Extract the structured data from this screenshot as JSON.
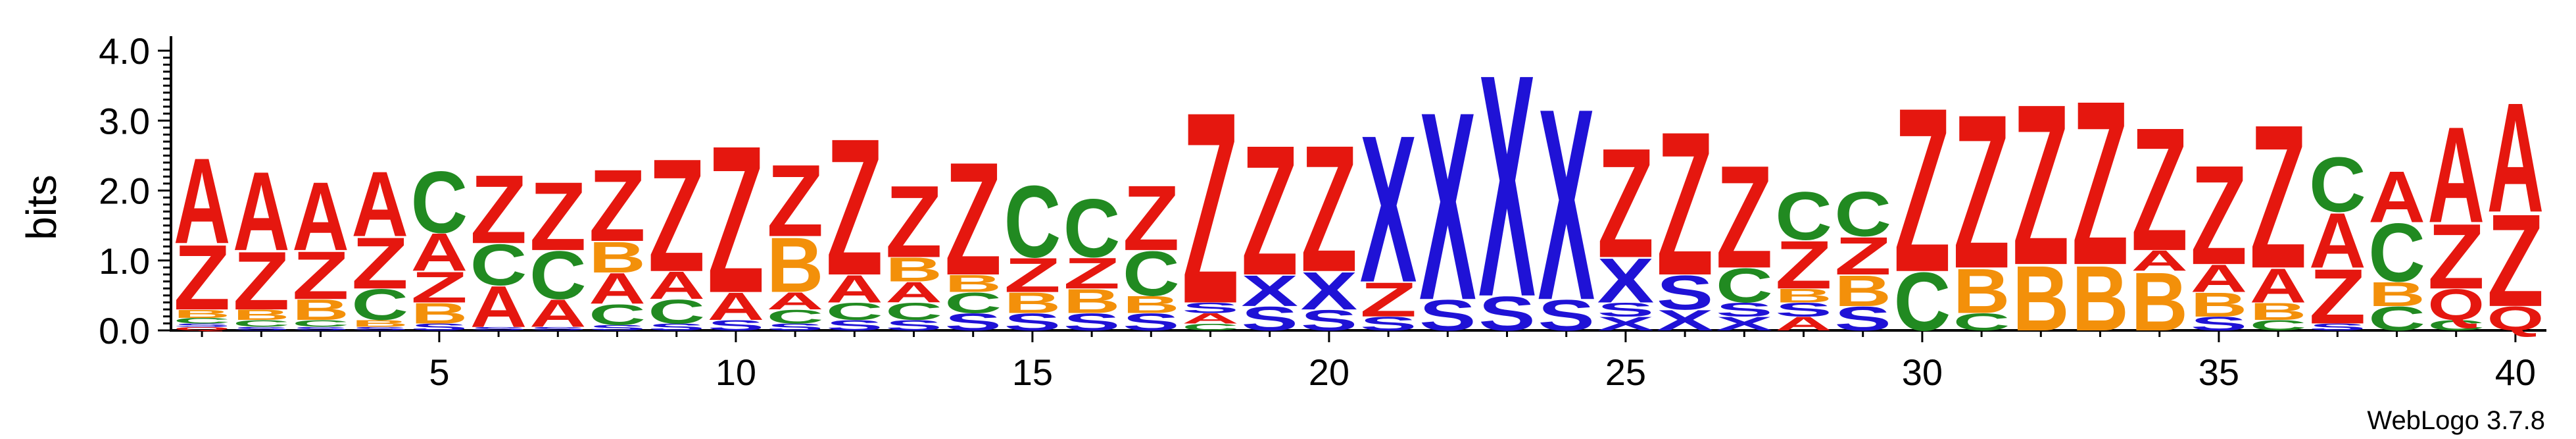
{
  "chart_data": {
    "type": "sequence_logo",
    "ylabel": "bits",
    "ylim": [
      0,
      4.0
    ],
    "yticks": [
      "0.0",
      "1.0",
      "2.0",
      "3.0",
      "4.0"
    ],
    "xlim": [
      0.5,
      40.5
    ],
    "xticks": [
      5,
      10,
      15,
      20,
      25,
      30,
      35,
      40
    ],
    "credit": "WebLogo 3.7.8",
    "colors": {
      "A": "#e5170f",
      "Z": "#e5170f",
      "X": "#1f12d6",
      "S": "#1f12d6",
      "C": "#218a21",
      "B": "#f3900a",
      "Q": "#e5170f"
    },
    "positions": [
      [
        [
          "Q",
          0.05
        ],
        [
          "S",
          0.05
        ],
        [
          "C",
          0.08
        ],
        [
          "B",
          0.12
        ],
        [
          "Z",
          0.95
        ],
        [
          "A",
          1.25
        ]
      ],
      [
        [
          "S",
          0.05
        ],
        [
          "C",
          0.1
        ],
        [
          "B",
          0.15
        ],
        [
          "Z",
          0.85
        ],
        [
          "A",
          1.15
        ]
      ],
      [
        [
          "S",
          0.05
        ],
        [
          "C",
          0.1
        ],
        [
          "B",
          0.3
        ],
        [
          "Z",
          0.7
        ],
        [
          "A",
          1.0
        ]
      ],
      [
        [
          "S",
          0.05
        ],
        [
          "B",
          0.1
        ],
        [
          "C",
          0.45
        ],
        [
          "Z",
          0.75
        ],
        [
          "A",
          0.95
        ]
      ],
      [
        [
          "S",
          0.1
        ],
        [
          "B",
          0.3
        ],
        [
          "Z",
          0.45
        ],
        [
          "A",
          0.55
        ],
        [
          "C",
          0.9
        ]
      ],
      [
        [
          "S",
          0.05
        ],
        [
          "A",
          0.6
        ],
        [
          "C",
          0.6
        ],
        [
          "Z",
          1.0
        ]
      ],
      [
        [
          "S",
          0.05
        ],
        [
          "A",
          0.4
        ],
        [
          "C",
          0.7
        ],
        [
          "Z",
          1.0
        ]
      ],
      [
        [
          "S",
          0.08
        ],
        [
          "C",
          0.3
        ],
        [
          "A",
          0.45
        ],
        [
          "B",
          0.45
        ],
        [
          "Z",
          1.05
        ]
      ],
      [
        [
          "S",
          0.1
        ],
        [
          "C",
          0.35
        ],
        [
          "A",
          0.4
        ],
        [
          "Z",
          1.65
        ]
      ],
      [
        [
          "S",
          0.15
        ],
        [
          "A",
          0.4
        ],
        [
          "Z",
          2.15
        ]
      ],
      [
        [
          "S",
          0.1
        ],
        [
          "C",
          0.2
        ],
        [
          "A",
          0.25
        ],
        [
          "B",
          0.8
        ],
        [
          "Z",
          1.05
        ]
      ],
      [
        [
          "S",
          0.15
        ],
        [
          "C",
          0.25
        ],
        [
          "A",
          0.4
        ],
        [
          "Z",
          2.0
        ]
      ],
      [
        [
          "S",
          0.15
        ],
        [
          "C",
          0.25
        ],
        [
          "A",
          0.3
        ],
        [
          "B",
          0.35
        ],
        [
          "Z",
          1.05
        ]
      ],
      [
        [
          "S",
          0.25
        ],
        [
          "C",
          0.3
        ],
        [
          "B",
          0.25
        ],
        [
          "Z",
          1.65
        ]
      ],
      [
        [
          "S",
          0.25
        ],
        [
          "B",
          0.3
        ],
        [
          "Z",
          0.5
        ],
        [
          "C",
          1.05
        ]
      ],
      [
        [
          "S",
          0.25
        ],
        [
          "B",
          0.35
        ],
        [
          "Z",
          0.45
        ],
        [
          "C",
          0.85
        ]
      ],
      [
        [
          "S",
          0.25
        ],
        [
          "B",
          0.25
        ],
        [
          "C",
          0.65
        ],
        [
          "Z",
          0.95
        ]
      ],
      [
        [
          "C",
          0.1
        ],
        [
          "A",
          0.15
        ],
        [
          "S",
          0.15
        ],
        [
          "Z",
          2.8
        ]
      ],
      [
        [
          "S",
          0.35
        ],
        [
          "X",
          0.45
        ],
        [
          "Z",
          1.9
        ]
      ],
      [
        [
          "S",
          0.3
        ],
        [
          "X",
          0.55
        ],
        [
          "Z",
          1.85
        ]
      ],
      [
        [
          "S",
          0.2
        ],
        [
          "Z",
          0.5
        ],
        [
          "X",
          2.15
        ]
      ],
      [
        [
          "S",
          0.45
        ],
        [
          "X",
          2.75
        ]
      ],
      [
        [
          "S",
          0.5
        ],
        [
          "X",
          3.25
        ]
      ],
      [
        [
          "S",
          0.45
        ],
        [
          "X",
          2.8
        ]
      ],
      [
        [
          "X",
          0.2
        ],
        [
          "S",
          0.2
        ],
        [
          "X",
          0.65
        ],
        [
          "Z",
          1.6
        ]
      ],
      [
        [
          "X",
          0.3
        ],
        [
          "S",
          0.5
        ],
        [
          "Z",
          2.1
        ]
      ],
      [
        [
          "X",
          0.2
        ],
        [
          "S",
          0.2
        ],
        [
          "C",
          0.5
        ],
        [
          "Z",
          1.5
        ]
      ],
      [
        [
          "A",
          0.2
        ],
        [
          "S",
          0.2
        ],
        [
          "B",
          0.2
        ],
        [
          "Z",
          0.7
        ],
        [
          "C",
          0.7
        ]
      ],
      [
        [
          "S",
          0.35
        ],
        [
          "B",
          0.45
        ],
        [
          "Z",
          0.55
        ],
        [
          "C",
          0.65
        ]
      ],
      [
        [
          "C",
          0.85
        ],
        [
          "Z",
          2.4
        ]
      ],
      [
        [
          "C",
          0.25
        ],
        [
          "B",
          0.65
        ],
        [
          "Z",
          2.25
        ]
      ],
      [
        [
          "B",
          0.95
        ],
        [
          "Z",
          2.35
        ]
      ],
      [
        [
          "B",
          0.95
        ],
        [
          "Z",
          2.4
        ]
      ],
      [
        [
          "B",
          0.85
        ],
        [
          "A",
          0.3
        ],
        [
          "Z",
          1.8
        ]
      ],
      [
        [
          "S",
          0.2
        ],
        [
          "B",
          0.35
        ],
        [
          "A",
          0.4
        ],
        [
          "Z",
          1.45
        ]
      ],
      [
        [
          "C",
          0.15
        ],
        [
          "B",
          0.25
        ],
        [
          "A",
          0.5
        ],
        [
          "Z",
          2.1
        ]
      ],
      [
        [
          "S",
          0.1
        ],
        [
          "Z",
          0.8
        ],
        [
          "A",
          0.8
        ],
        [
          "C",
          0.8
        ]
      ],
      [
        [
          "C",
          0.35
        ],
        [
          "B",
          0.35
        ],
        [
          "C",
          0.85
        ],
        [
          "A",
          0.75
        ]
      ],
      [
        [
          "C",
          0.15
        ],
        [
          "Q",
          0.45
        ],
        [
          "Z",
          0.95
        ],
        [
          "A",
          1.4
        ]
      ],
      [
        [
          "Q",
          0.35
        ],
        [
          "Z",
          1.35
        ],
        [
          "A",
          1.6
        ]
      ]
    ]
  }
}
